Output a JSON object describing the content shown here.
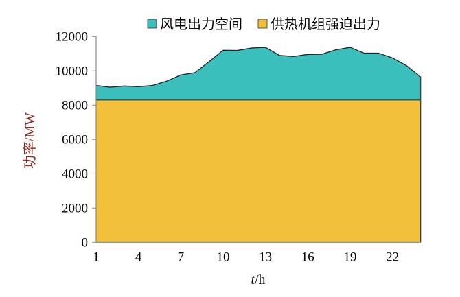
{
  "chart_data": {
    "type": "area",
    "stacked": true,
    "x": [
      1,
      2,
      3,
      4,
      5,
      6,
      7,
      8,
      9,
      10,
      11,
      12,
      13,
      14,
      15,
      16,
      17,
      18,
      19,
      20,
      21,
      22,
      23,
      24
    ],
    "series": [
      {
        "name": "供热机组强迫出力",
        "color": "#f3c03c",
        "values": [
          8300,
          8300,
          8300,
          8300,
          8300,
          8300,
          8300,
          8300,
          8300,
          8300,
          8300,
          8300,
          8300,
          8300,
          8300,
          8300,
          8300,
          8300,
          8300,
          8300,
          8300,
          8300,
          8300,
          8300
        ]
      },
      {
        "name": "风电出力空间",
        "color": "#3bbfbd",
        "total_values": [
          9150,
          9050,
          9120,
          9080,
          9150,
          9400,
          9760,
          9890,
          10530,
          11200,
          11190,
          11330,
          11370,
          10900,
          10840,
          10960,
          10970,
          11230,
          11370,
          11030,
          11030,
          10760,
          10300,
          9640
        ]
      }
    ],
    "xlabel_italic": "t",
    "xlabel_rest": "/h",
    "ylabel": "功率/MW",
    "ylim": [
      0,
      12000
    ],
    "yticks": [
      0,
      2000,
      4000,
      6000,
      8000,
      10000,
      12000
    ],
    "xticks": [
      1,
      4,
      7,
      10,
      13,
      16,
      19,
      22
    ],
    "xlim": [
      1,
      24
    ],
    "legend_position": "top",
    "grid": false
  }
}
